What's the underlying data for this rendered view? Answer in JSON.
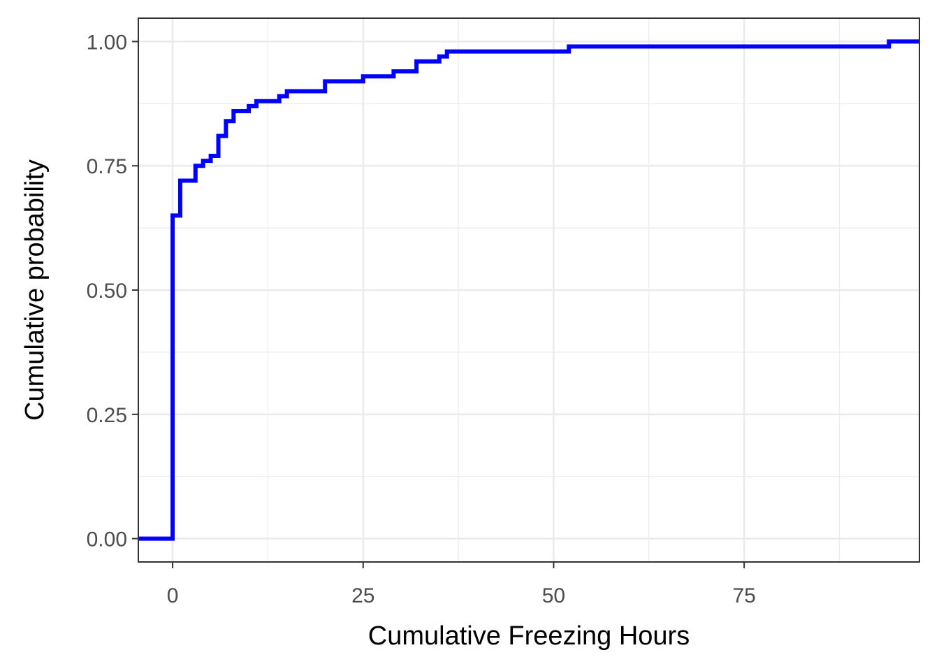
{
  "chart_data": {
    "type": "line",
    "step": true,
    "xlabel": "Cumulative Freezing Hours",
    "ylabel": "Cumulative probability",
    "xlim": [
      -4.5,
      98
    ],
    "ylim": [
      -0.047,
      1.047
    ],
    "x_ticks": [
      0,
      25,
      50,
      75
    ],
    "x_tick_labels": [
      "0",
      "25",
      "50",
      "75"
    ],
    "y_ticks": [
      0,
      0.25,
      0.5,
      0.75,
      1.0
    ],
    "y_tick_labels": [
      "0.00",
      "0.25",
      "0.50",
      "0.75",
      "1.00"
    ],
    "grid": true,
    "series": [
      {
        "color": "#0000ff",
        "x": [
          -4.5,
          0,
          1,
          3,
          4,
          5,
          6,
          7,
          8,
          10,
          11,
          14,
          15,
          20,
          25,
          29,
          32,
          35,
          36,
          52,
          94,
          98
        ],
        "values": [
          0,
          0.65,
          0.72,
          0.75,
          0.76,
          0.77,
          0.81,
          0.84,
          0.86,
          0.87,
          0.88,
          0.89,
          0.9,
          0.92,
          0.93,
          0.94,
          0.96,
          0.97,
          0.98,
          0.99,
          1.0,
          1.0
        ]
      }
    ],
    "colors": {
      "panel_border": "#333333",
      "grid": "#ebebeb",
      "tick_text": "#4d4d4d"
    }
  }
}
